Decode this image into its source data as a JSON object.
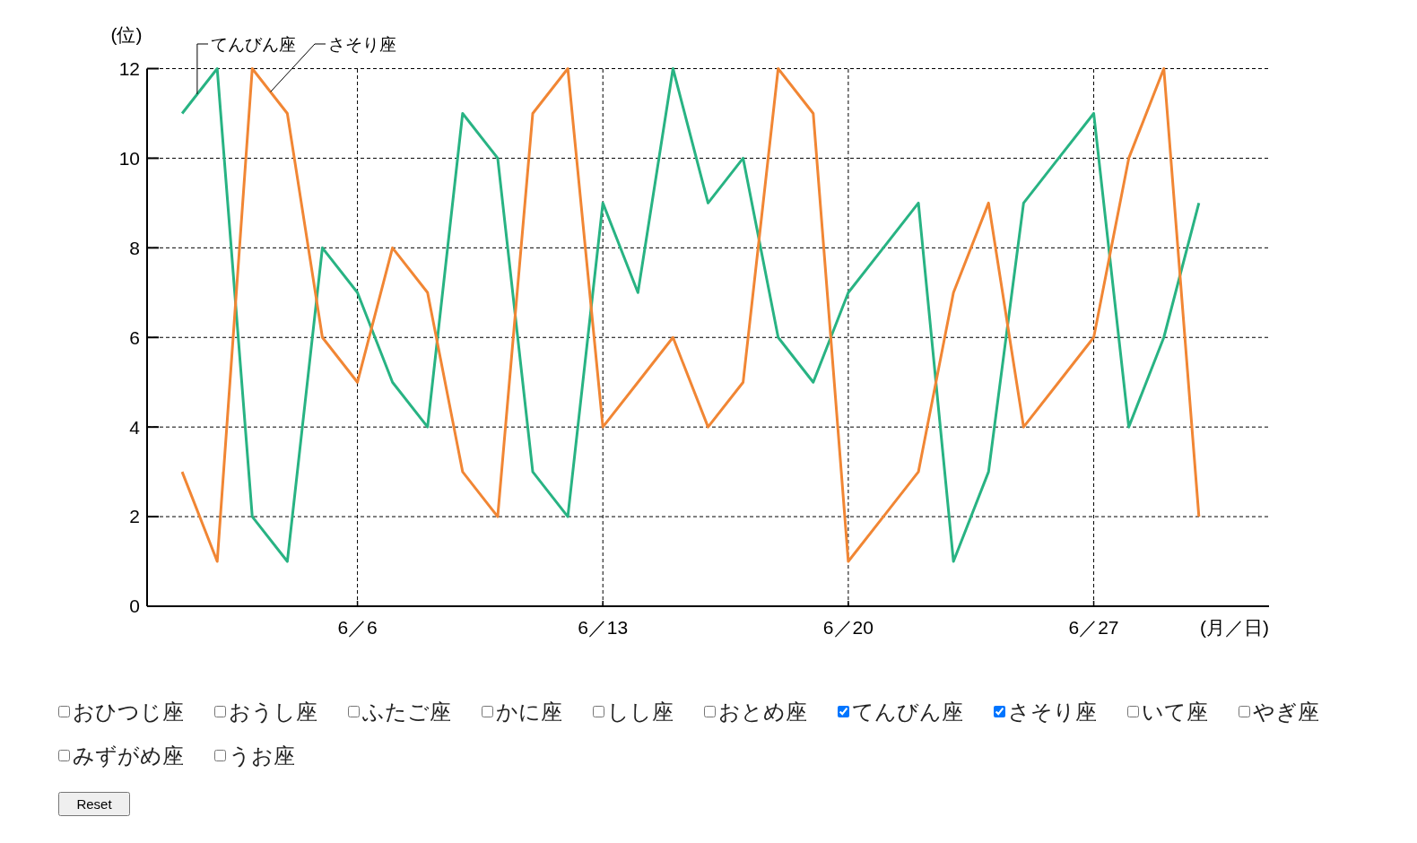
{
  "chart_data": {
    "type": "line",
    "xlabel": "(月／日)",
    "ylabel": "(位)",
    "x": [
      "--06-01",
      "--06-02",
      "--06-03",
      "--06-04",
      "--06-05",
      "--06-06",
      "--06-07",
      "--06-08",
      "--06-09",
      "--06-10",
      "--06-11",
      "--06-12",
      "--06-13",
      "--06-14",
      "--06-15",
      "--06-16",
      "--06-17",
      "--06-18",
      "--06-19",
      "--06-20",
      "--06-21",
      "--06-22",
      "--06-23",
      "--06-24",
      "--06-25",
      "--06-26",
      "--06-27",
      "--06-28",
      "--06-29",
      "--06-30"
    ],
    "series": [
      {
        "name": "てんびん座",
        "color": "#28b383",
        "values": [
          11,
          12,
          2,
          1,
          8,
          7,
          5,
          4,
          11,
          10,
          3,
          2,
          9,
          7,
          12,
          9,
          10,
          6,
          5,
          7,
          8,
          9,
          1,
          3,
          9,
          10,
          11,
          4,
          6,
          9
        ]
      },
      {
        "name": "さそり座",
        "color": "#f18634",
        "values": [
          3,
          1,
          12,
          11,
          6,
          5,
          8,
          7,
          3,
          2,
          11,
          12,
          4,
          5,
          6,
          4,
          5,
          12,
          11,
          1,
          2,
          3,
          7,
          9,
          4,
          5,
          6,
          10,
          12,
          2
        ]
      }
    ],
    "xlim": [
      "--05-31",
      "--07-02"
    ],
    "xticks": [
      {
        "value": "--06-06",
        "label": "6／6"
      },
      {
        "value": "--06-13",
        "label": "6／13"
      },
      {
        "value": "--06-20",
        "label": "6／20"
      },
      {
        "value": "--06-27",
        "label": "6／27"
      }
    ],
    "ylim": [
      0,
      12
    ],
    "yticks": [
      0,
      2,
      4,
      6,
      8,
      10,
      12
    ],
    "grid": true,
    "annotations": [
      "おひつじ座",
      "おうし座",
      "ふたご座",
      "かに座",
      "しし座",
      "おとめ座",
      "てんびん座",
      "さそり座",
      "いて座",
      "やぎ座",
      "みずがめ座",
      "うお座",
      "Reset"
    ]
  }
}
